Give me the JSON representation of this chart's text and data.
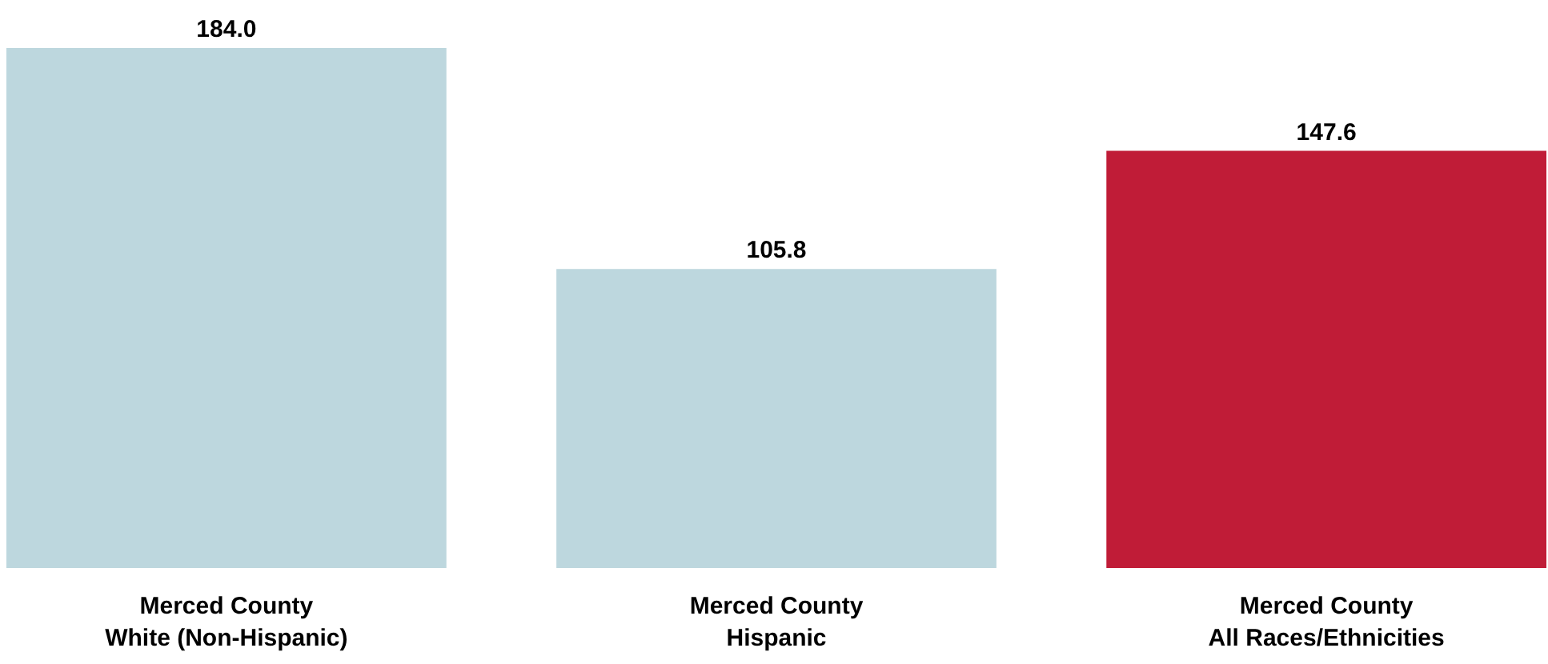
{
  "chart_data": {
    "type": "bar",
    "categories": [
      "Merced County\nWhite (Non-Hispanic)",
      "Merced County\nHispanic",
      "Merced County\nAll Races/Ethnicities"
    ],
    "values": [
      184.0,
      105.8,
      147.6
    ],
    "colors": [
      "#bdd7de",
      "#bdd7de",
      "#c01c37"
    ],
    "value_labels": [
      "184.0",
      "105.8",
      "147.6"
    ],
    "grid": false
  }
}
